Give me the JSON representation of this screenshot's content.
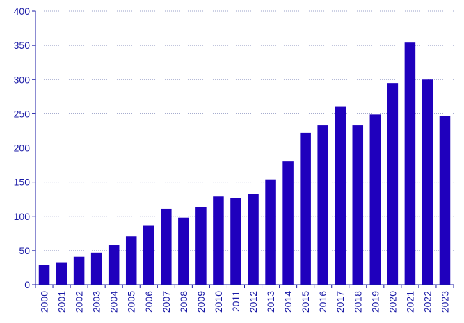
{
  "chart_data": {
    "type": "bar",
    "title": "",
    "xlabel": "",
    "ylabel": "",
    "ylim": [
      0,
      400
    ],
    "yticks": [
      0,
      50,
      100,
      150,
      200,
      250,
      300,
      350,
      400
    ],
    "grid": "horizontal dotted",
    "categories": [
      "2000",
      "2001",
      "2002",
      "2003",
      "2004",
      "2005",
      "2006",
      "2007",
      "2008",
      "2009",
      "2010",
      "2011",
      "2012",
      "2013",
      "2014",
      "2015",
      "2016",
      "2017",
      "2018",
      "2019",
      "2020",
      "2021",
      "2022",
      "2023"
    ],
    "values": [
      29,
      32,
      41,
      47,
      58,
      71,
      87,
      111,
      98,
      113,
      129,
      127,
      133,
      154,
      180,
      222,
      233,
      261,
      233,
      249,
      295,
      354,
      300,
      247
    ],
    "colors": {
      "bar": "#1f00bd",
      "axis": "#1a1aa6",
      "text": "#1a1aa6",
      "grid": "#9aa0c8"
    }
  }
}
